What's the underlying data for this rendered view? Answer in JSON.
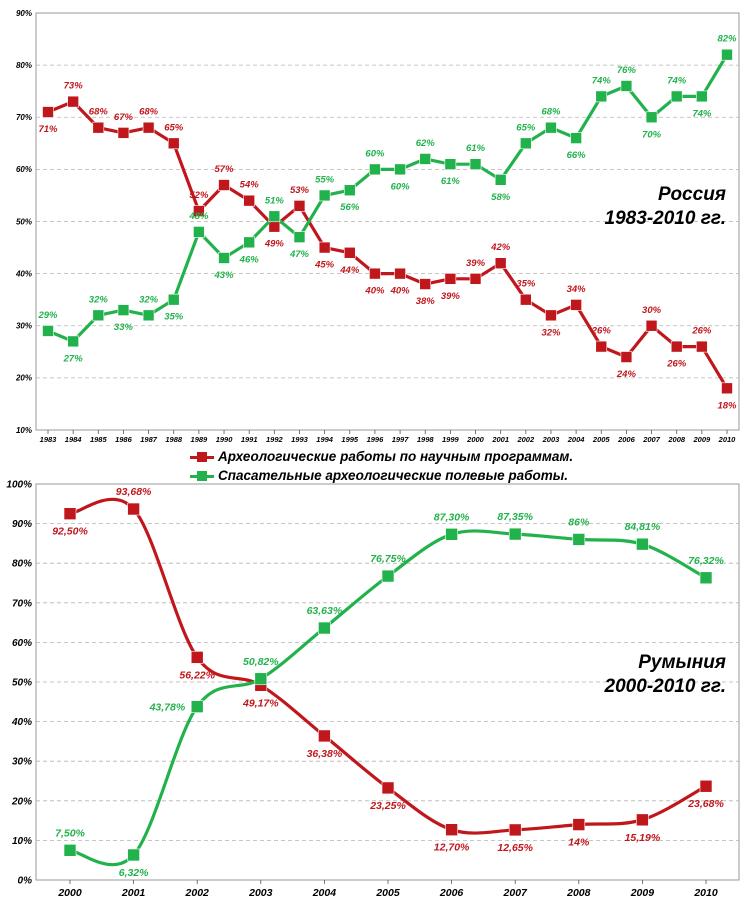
{
  "colors": {
    "red": "#c0171d",
    "green": "#22b24c",
    "grid": "#b3b3b3",
    "axis": "#000000"
  },
  "legend": {
    "red_label": "Археологические работы по научным программам.",
    "green_label": "Спасательные археологические полевые работы."
  },
  "chart_data": [
    {
      "type": "line",
      "title": [
        "Россия",
        "1983-2010 гг."
      ],
      "categories": [
        "1983",
        "1984",
        "1985",
        "1986",
        "1987",
        "1988",
        "1989",
        "1990",
        "1991",
        "1992",
        "1993",
        "1994",
        "1995",
        "1996",
        "1997",
        "1998",
        "1999",
        "2000",
        "2001",
        "2002",
        "2003",
        "2004",
        "2005",
        "2006",
        "2007",
        "2008",
        "2009",
        "2010"
      ],
      "ylim": [
        10,
        90
      ],
      "yticks": [
        "10%",
        "20%",
        "30%",
        "40%",
        "50%",
        "60%",
        "70%",
        "80%",
        "90%"
      ],
      "grid": true,
      "series": [
        {
          "name": "Археологические работы по научным программам.",
          "color": "red",
          "values": [
            71,
            73,
            68,
            67,
            68,
            65,
            52,
            57,
            54,
            49,
            53,
            45,
            44,
            40,
            40,
            38,
            39,
            39,
            42,
            35,
            32,
            34,
            26,
            24,
            30,
            26,
            26,
            18
          ],
          "labels": [
            "71%",
            "73%",
            "68%",
            "67%",
            "68%",
            "65%",
            "52%",
            "57%",
            "54%",
            "49%",
            "53%",
            "45%",
            "44%",
            "40%",
            "40%",
            "38%",
            "39%",
            "39%",
            "42%",
            "35%",
            "32%",
            "34%",
            "26%",
            "24%",
            "30%",
            "26%",
            "26%",
            "18%"
          ],
          "positions": [
            "below",
            "above",
            "above",
            "above",
            "above",
            "above",
            "above",
            "above",
            "above",
            "below",
            "above",
            "below",
            "below",
            "below",
            "below",
            "below",
            "below",
            "above",
            "above",
            "above",
            "below",
            "above",
            "above",
            "below",
            "above",
            "below",
            "above",
            "below"
          ]
        },
        {
          "name": "Спасательные археологические полевые работы.",
          "color": "green",
          "values": [
            29,
            27,
            32,
            33,
            32,
            35,
            48,
            43,
            46,
            51,
            47,
            55,
            56,
            60,
            60,
            62,
            61,
            61,
            58,
            65,
            68,
            66,
            74,
            76,
            70,
            74,
            74,
            82
          ],
          "labels": [
            "29%",
            "27%",
            "32%",
            "33%",
            "32%",
            "35%",
            "48%",
            "43%",
            "46%",
            "51%",
            "47%",
            "55%",
            "56%",
            "60%",
            "60%",
            "62%",
            "61%",
            "61%",
            "58%",
            "65%",
            "68%",
            "66%",
            "74%",
            "76%",
            "70%",
            "74%",
            "74%",
            "82%"
          ],
          "positions": [
            "above",
            "below",
            "above",
            "below",
            "above",
            "below",
            "above",
            "below",
            "below",
            "above",
            "below",
            "above",
            "below",
            "above",
            "below",
            "above",
            "below",
            "above",
            "below",
            "above",
            "above",
            "below",
            "above",
            "above",
            "below",
            "above",
            "below",
            "above"
          ]
        }
      ]
    },
    {
      "type": "line",
      "title": [
        "Румыния",
        "2000-2010 гг."
      ],
      "categories": [
        "2000",
        "2001",
        "2002",
        "2003",
        "2004",
        "2005",
        "2006",
        "2007",
        "2008",
        "2009",
        "2010"
      ],
      "ylim": [
        0,
        100
      ],
      "yticks": [
        "0%",
        "10%",
        "20%",
        "30%",
        "40%",
        "50%",
        "60%",
        "70%",
        "80%",
        "90%",
        "100%"
      ],
      "grid": true,
      "series": [
        {
          "name": "Археологические работы по научным программам.",
          "color": "red",
          "values": [
            92.5,
            93.68,
            56.22,
            49.17,
            36.38,
            23.25,
            12.7,
            12.65,
            14,
            15.19,
            23.68
          ],
          "labels": [
            "92,50%",
            "93,68%",
            "56,22%",
            "49,17%",
            "36,38%",
            "23,25%",
            "12,70%",
            "12,65%",
            "14%",
            "15,19%",
            "23,68%"
          ],
          "positions": [
            "below",
            "above",
            "below",
            "below",
            "below",
            "below",
            "below",
            "below",
            "below",
            "below",
            "below"
          ]
        },
        {
          "name": "Спасательные археологические полевые работы.",
          "color": "green",
          "values": [
            7.5,
            6.32,
            43.78,
            50.82,
            63.63,
            76.75,
            87.3,
            87.35,
            86,
            84.81,
            76.32
          ],
          "labels": [
            "7,50%",
            "6,32%",
            "43,78%",
            "50,82%",
            "63,63%",
            "76,75%",
            "87,30%",
            "87,35%",
            "86%",
            "84,81%",
            "76,32%"
          ],
          "positions": [
            "above",
            "below",
            "left",
            "above",
            "above",
            "above",
            "above",
            "above",
            "above",
            "above",
            "above"
          ]
        }
      ]
    }
  ]
}
